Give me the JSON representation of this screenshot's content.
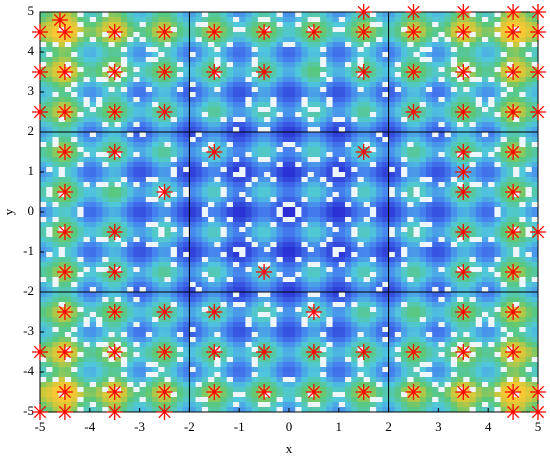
{
  "chart_data": {
    "type": "scatter",
    "xlabel": "x",
    "ylabel": "y",
    "xlim": [
      -5,
      5
    ],
    "ylim": [
      -5,
      5
    ],
    "xticks": [
      -5,
      -4,
      -3,
      -2,
      -1,
      0,
      1,
      2,
      3,
      4,
      5
    ],
    "yticks": [
      -5,
      -4,
      -3,
      -2,
      -1,
      0,
      1,
      2,
      3,
      4,
      5
    ],
    "vlines": [
      -2,
      2
    ],
    "hlines": [
      -2,
      2
    ],
    "series": [
      {
        "color": "#ff0000",
        "x": [
          -4.6,
          1.5,
          2.5,
          3.5,
          4.5,
          5,
          -5,
          -4.5,
          -3.5,
          -2.5,
          -1.5,
          -0.5,
          0.5,
          1.5,
          2.5,
          3.5,
          4.5,
          5,
          -5,
          -4.5,
          -3.5,
          -2.5,
          -1.5,
          -0.5,
          1.5,
          2.5,
          3.5,
          4.5,
          5,
          -5,
          -4.5,
          -3.5,
          -2.5,
          2.5,
          3.5,
          4.5,
          5,
          -4.5,
          -3.5,
          -1.5,
          1.5,
          3.5,
          4.5,
          3.5,
          -4.5,
          -2.5,
          3.5,
          4.5,
          -4.5,
          -3.5,
          3.5,
          4.5,
          5,
          -4.5,
          -3.5,
          -0.5,
          3.5,
          4.5,
          -4.5,
          -3.5,
          -2.5,
          -1.5,
          0.5,
          3.5,
          4.5,
          -5,
          -4.5,
          -3.5,
          -2.5,
          -1.5,
          -0.5,
          0.5,
          1.5,
          2.5,
          3.5,
          4.5,
          -4.5,
          -3.5,
          -2.5,
          -1.5,
          -0.5,
          0.5,
          1.5,
          2.5,
          3.5,
          4.5,
          5,
          -5,
          -4.5,
          -3.5,
          -2.5,
          4.5,
          5
        ],
        "y": [
          4.8,
          5,
          5,
          5,
          5,
          5,
          4.5,
          4.5,
          4.5,
          4.5,
          4.5,
          4.5,
          4.5,
          4.5,
          4.5,
          4.5,
          4.5,
          4.5,
          3.5,
          3.5,
          3.5,
          3.5,
          3.5,
          3.5,
          3.5,
          3.5,
          3.5,
          3.5,
          3.5,
          2.5,
          2.5,
          2.5,
          2.5,
          2.5,
          2.5,
          2.5,
          2.5,
          1.5,
          1.5,
          1.5,
          1.5,
          1.5,
          1.5,
          1,
          0.5,
          0.5,
          0.5,
          0.5,
          -0.5,
          -0.5,
          -0.5,
          -0.5,
          -0.5,
          -1.5,
          -1.5,
          -1.5,
          -1.5,
          -1.5,
          -2.5,
          -2.5,
          -2.5,
          -2.5,
          -2.5,
          -2.5,
          -2.5,
          -3.5,
          -3.5,
          -3.5,
          -3.5,
          -3.5,
          -3.5,
          -3.5,
          -3.5,
          -3.5,
          -3.5,
          -3.5,
          -4.5,
          -4.5,
          -4.5,
          -4.5,
          -4.5,
          -4.5,
          -4.5,
          -4.5,
          -4.5,
          -4.5,
          -4.5,
          -5,
          -5,
          -5,
          -5,
          -5,
          -5
        ]
      }
    ]
  }
}
